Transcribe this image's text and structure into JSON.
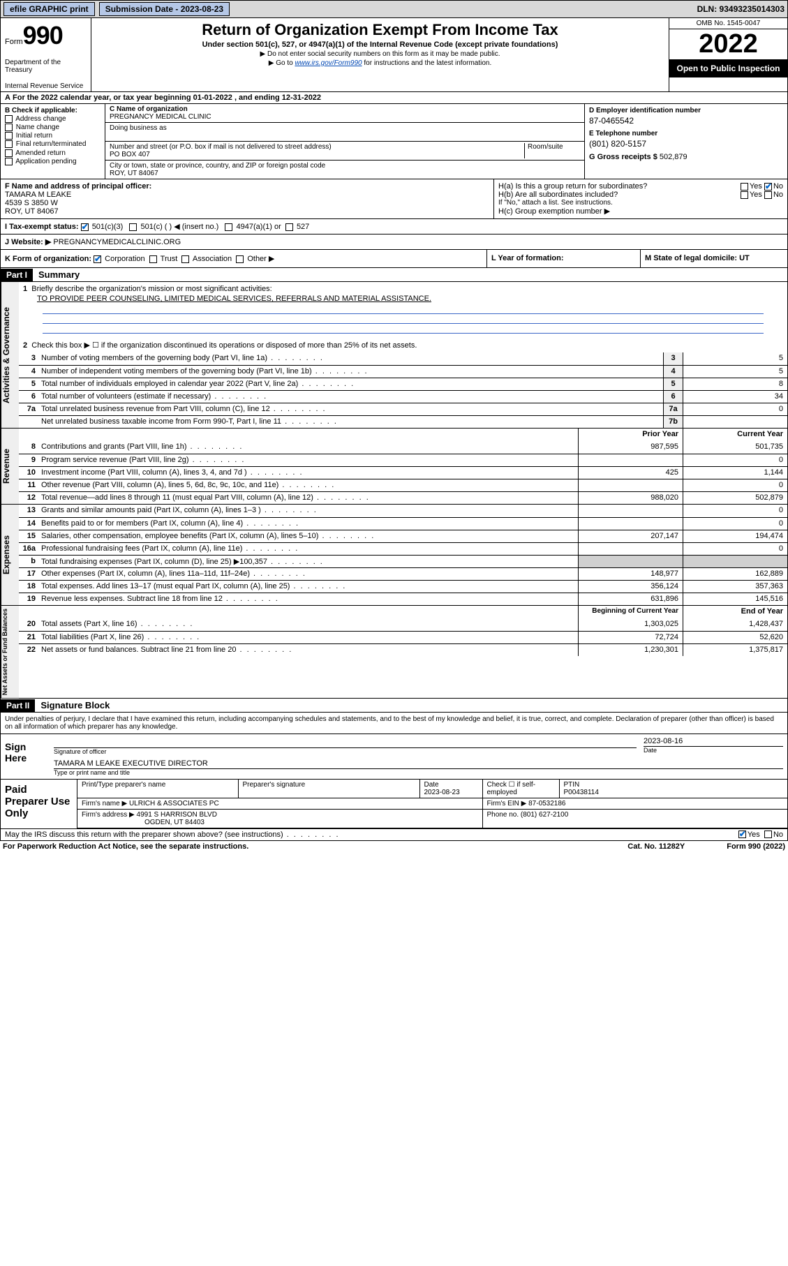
{
  "topbar": {
    "efile": "efile GRAPHIC print",
    "submission_label": "Submission Date - 2023-08-23",
    "dln_label": "DLN: 93493235014303"
  },
  "header": {
    "form_prefix": "Form",
    "form_number": "990",
    "dept": "Department of the Treasury",
    "irs": "Internal Revenue Service",
    "title": "Return of Organization Exempt From Income Tax",
    "subtitle": "Under section 501(c), 527, or 4947(a)(1) of the Internal Revenue Code (except private foundations)",
    "note1": "▶ Do not enter social security numbers on this form as it may be made public.",
    "note2_pre": "▶ Go to ",
    "note2_link": "www.irs.gov/Form990",
    "note2_post": " for instructions and the latest information.",
    "omb": "OMB No. 1545-0047",
    "year": "2022",
    "open": "Open to Public Inspection"
  },
  "line_a": "For the 2022 calendar year, or tax year beginning 01-01-2022   , and ending 12-31-2022",
  "box_b": {
    "label": "B Check if applicable:",
    "opts": [
      "Address change",
      "Name change",
      "Initial return",
      "Final return/terminated",
      "Amended return",
      "Application pending"
    ]
  },
  "box_c": {
    "label": "C Name of organization",
    "name": "PREGNANCY MEDICAL CLINIC",
    "dba_label": "Doing business as",
    "dba": "",
    "street_label": "Number and street (or P.O. box if mail is not delivered to street address)",
    "room_label": "Room/suite",
    "street": "PO BOX 407",
    "city_label": "City or town, state or province, country, and ZIP or foreign postal code",
    "city": "ROY, UT  84067"
  },
  "box_d": {
    "label": "D Employer identification number",
    "val": "87-0465542"
  },
  "box_e": {
    "label": "E Telephone number",
    "val": "(801) 820-5157"
  },
  "box_g": {
    "label": "G Gross receipts $",
    "val": "502,879"
  },
  "box_f": {
    "label": "F Name and address of principal officer:",
    "name": "TAMARA M LEAKE",
    "addr1": "4539 S 3850 W",
    "addr2": "ROY, UT  84067"
  },
  "box_h": {
    "ha": "H(a)  Is this a group return for subordinates?",
    "hb": "H(b)  Are all subordinates included?",
    "hb_note": "If \"No,\" attach a list. See instructions.",
    "hc": "H(c)  Group exemption number ▶"
  },
  "box_i": {
    "label": "I   Tax-exempt status:",
    "opts": [
      "501(c)(3)",
      "501(c) (  ) ◀ (insert no.)",
      "4947(a)(1) or",
      "527"
    ]
  },
  "box_j": {
    "label": "J   Website: ▶",
    "val": "PREGNANCYMEDICALCLINIC.ORG"
  },
  "box_k": {
    "label": "K Form of organization:",
    "opts": [
      "Corporation",
      "Trust",
      "Association",
      "Other ▶"
    ]
  },
  "box_l": {
    "label": "L Year of formation:",
    "val": ""
  },
  "box_m": {
    "label": "M State of legal domicile: UT"
  },
  "part1": {
    "tag": "Part I",
    "title": "Summary"
  },
  "summary": {
    "q1": "Briefly describe the organization's mission or most significant activities:",
    "mission": "TO PROVIDE PEER COUNSELING, LIMITED MEDICAL SERVICES, REFERRALS AND MATERIAL ASSISTANCE.",
    "q2": "Check this box ▶ ☐  if the organization discontinued its operations or disposed of more than 25% of its net assets.",
    "lines_gov": [
      {
        "n": "3",
        "d": "Number of voting members of the governing body (Part VI, line 1a)",
        "box": "3",
        "v": "5"
      },
      {
        "n": "4",
        "d": "Number of independent voting members of the governing body (Part VI, line 1b)",
        "box": "4",
        "v": "5"
      },
      {
        "n": "5",
        "d": "Total number of individuals employed in calendar year 2022 (Part V, line 2a)",
        "box": "5",
        "v": "8"
      },
      {
        "n": "6",
        "d": "Total number of volunteers (estimate if necessary)",
        "box": "6",
        "v": "34"
      },
      {
        "n": "7a",
        "d": "Total unrelated business revenue from Part VIII, column (C), line 12",
        "box": "7a",
        "v": "0"
      },
      {
        "n": "",
        "d": "Net unrelated business taxable income from Form 990-T, Part I, line 11",
        "box": "7b",
        "v": ""
      }
    ],
    "hdr_prior": "Prior Year",
    "hdr_curr": "Current Year",
    "lines_rev": [
      {
        "n": "8",
        "d": "Contributions and grants (Part VIII, line 1h)",
        "p": "987,595",
        "c": "501,735"
      },
      {
        "n": "9",
        "d": "Program service revenue (Part VIII, line 2g)",
        "p": "",
        "c": "0"
      },
      {
        "n": "10",
        "d": "Investment income (Part VIII, column (A), lines 3, 4, and 7d )",
        "p": "425",
        "c": "1,144"
      },
      {
        "n": "11",
        "d": "Other revenue (Part VIII, column (A), lines 5, 6d, 8c, 9c, 10c, and 11e)",
        "p": "",
        "c": "0"
      },
      {
        "n": "12",
        "d": "Total revenue—add lines 8 through 11 (must equal Part VIII, column (A), line 12)",
        "p": "988,020",
        "c": "502,879"
      }
    ],
    "lines_exp": [
      {
        "n": "13",
        "d": "Grants and similar amounts paid (Part IX, column (A), lines 1–3 )",
        "p": "",
        "c": "0"
      },
      {
        "n": "14",
        "d": "Benefits paid to or for members (Part IX, column (A), line 4)",
        "p": "",
        "c": "0"
      },
      {
        "n": "15",
        "d": "Salaries, other compensation, employee benefits (Part IX, column (A), lines 5–10)",
        "p": "207,147",
        "c": "194,474"
      },
      {
        "n": "16a",
        "d": "Professional fundraising fees (Part IX, column (A), line 11e)",
        "p": "",
        "c": "0"
      },
      {
        "n": "b",
        "d": "Total fundraising expenses (Part IX, column (D), line 25) ▶100,357",
        "p": "shade",
        "c": "shade"
      },
      {
        "n": "17",
        "d": "Other expenses (Part IX, column (A), lines 11a–11d, 11f–24e)",
        "p": "148,977",
        "c": "162,889"
      },
      {
        "n": "18",
        "d": "Total expenses. Add lines 13–17 (must equal Part IX, column (A), line 25)",
        "p": "356,124",
        "c": "357,363"
      },
      {
        "n": "19",
        "d": "Revenue less expenses. Subtract line 18 from line 12",
        "p": "631,896",
        "c": "145,516"
      }
    ],
    "hdr_beg": "Beginning of Current Year",
    "hdr_end": "End of Year",
    "lines_net": [
      {
        "n": "20",
        "d": "Total assets (Part X, line 16)",
        "p": "1,303,025",
        "c": "1,428,437"
      },
      {
        "n": "21",
        "d": "Total liabilities (Part X, line 26)",
        "p": "72,724",
        "c": "52,620"
      },
      {
        "n": "22",
        "d": "Net assets or fund balances. Subtract line 21 from line 20",
        "p": "1,230,301",
        "c": "1,375,817"
      }
    ]
  },
  "part2": {
    "tag": "Part II",
    "title": "Signature Block"
  },
  "sig": {
    "intro": "Under penalties of perjury, I declare that I have examined this return, including accompanying schedules and statements, and to the best of my knowledge and belief, it is true, correct, and complete. Declaration of preparer (other than officer) is based on all information of which preparer has any knowledge.",
    "here": "Sign Here",
    "officer_label": "Signature of officer",
    "date_label": "Date",
    "date": "2023-08-16",
    "name": "TAMARA M LEAKE  EXECUTIVE DIRECTOR",
    "name_label": "Type or print name and title"
  },
  "paid": {
    "label": "Paid Preparer Use Only",
    "h1": "Print/Type preparer's name",
    "h2": "Preparer's signature",
    "h3_label": "Date",
    "h3": "2023-08-23",
    "h4_label": "Check ☐ if self-employed",
    "h5_label": "PTIN",
    "h5": "P00438114",
    "firm_label": "Firm's name    ▶",
    "firm": "ULRICH & ASSOCIATES PC",
    "ein_label": "Firm's EIN ▶",
    "ein": "87-0532186",
    "addr_label": "Firm's address ▶",
    "addr1": "4991 S HARRISON BLVD",
    "addr2": "OGDEN, UT  84403",
    "phone_label": "Phone no.",
    "phone": "(801) 627-2100"
  },
  "discuss": "May the IRS discuss this return with the preparer shown above? (see instructions)",
  "footer": {
    "pra": "For Paperwork Reduction Act Notice, see the separate instructions.",
    "cat": "Cat. No. 11282Y",
    "form": "Form 990 (2022)"
  },
  "labels": {
    "yes": "Yes",
    "no": "No",
    "vlabel_gov": "Activities & Governance",
    "vlabel_rev": "Revenue",
    "vlabel_exp": "Expenses",
    "vlabel_net": "Net Assets or Fund Balances"
  }
}
